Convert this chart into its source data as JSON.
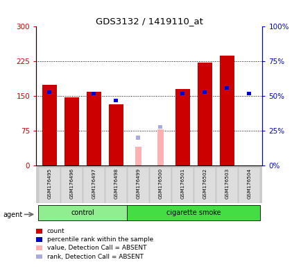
{
  "title": "GDS3132 / 1419110_at",
  "samples": [
    "GSM176495",
    "GSM176496",
    "GSM176497",
    "GSM176498",
    "GSM176499",
    "GSM176500",
    "GSM176501",
    "GSM176502",
    "GSM176503",
    "GSM176504"
  ],
  "count_values": [
    175,
    148,
    160,
    132,
    null,
    null,
    165,
    222,
    238,
    null
  ],
  "percentile_rank": [
    53,
    null,
    52,
    47,
    null,
    null,
    52,
    53,
    56,
    52
  ],
  "absent_value": [
    null,
    null,
    null,
    null,
    40,
    78,
    null,
    null,
    null,
    null
  ],
  "absent_rank": [
    null,
    null,
    null,
    null,
    20,
    28,
    null,
    null,
    null,
    null
  ],
  "groups": [
    {
      "label": "control",
      "start": 0,
      "end": 4,
      "color": "#90EE90"
    },
    {
      "label": "cigarette smoke",
      "start": 4,
      "end": 10,
      "color": "#44DD44"
    }
  ],
  "ylim_left": [
    0,
    300
  ],
  "ylim_right": [
    0,
    100
  ],
  "yticks_left": [
    0,
    75,
    150,
    225,
    300
  ],
  "ytick_labels_left": [
    "0",
    "75",
    "150",
    "225",
    "300"
  ],
  "yticks_right_vals": [
    0,
    25,
    50,
    75,
    100
  ],
  "ytick_labels_right": [
    "0%",
    "25%",
    "50%",
    "75%",
    "100%"
  ],
  "bar_color_red": "#CC0000",
  "bar_color_blue": "#0000CC",
  "bar_color_pink": "#FFB0B0",
  "bar_color_lightblue": "#AAAADD",
  "legend": [
    {
      "color": "#CC0000",
      "label": "count"
    },
    {
      "color": "#0000CC",
      "label": "percentile rank within the sample"
    },
    {
      "color": "#FFB0B0",
      "label": "value, Detection Call = ABSENT"
    },
    {
      "color": "#AAAADD",
      "label": "rank, Detection Call = ABSENT"
    }
  ]
}
